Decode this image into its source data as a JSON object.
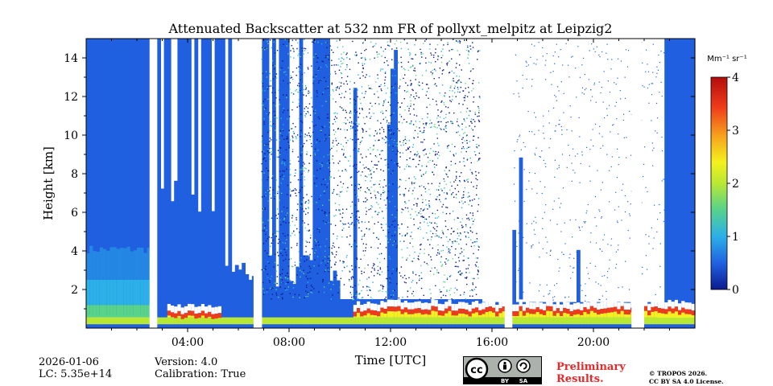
{
  "chart_data": {
    "type": "heatmap",
    "title": "Attenuated Backscatter at 532 nm FR of pollyxt_melpitz at Leipzig2",
    "xlabel": "Time [UTC]",
    "ylabel": "Height [km]",
    "x_unit": "hours UTC",
    "xlim": [
      0,
      24
    ],
    "ylim": [
      0,
      15
    ],
    "x_ticks": [
      4,
      8,
      12,
      16,
      20
    ],
    "x_tick_labels": [
      "04:00",
      "08:00",
      "12:00",
      "16:00",
      "20:00"
    ],
    "y_ticks": [
      2,
      4,
      6,
      8,
      10,
      12,
      14
    ],
    "y_tick_labels": [
      "2",
      "4",
      "6",
      "8",
      "10",
      "12",
      "14"
    ],
    "colorbar": {
      "unit_label": "Mm⁻¹ sr⁻¹",
      "range": [
        0,
        4
      ],
      "ticks": [
        0,
        1,
        2,
        3,
        4
      ],
      "tick_labels": [
        "0",
        "1",
        "2",
        "3",
        "4"
      ],
      "colormap": [
        "#0b1a8c",
        "#1f5fe0",
        "#2bb0e8",
        "#5ad38a",
        "#b8e832",
        "#f4f11e",
        "#f7a51c",
        "#ef3b1a",
        "#b30c0c"
      ]
    },
    "data_gaps_hours": [
      [
        2.5,
        2.8
      ],
      [
        6.6,
        6.9
      ],
      [
        16.5,
        16.8
      ],
      [
        21.5,
        21.9
      ]
    ],
    "boundary_layer_top_km": 1.5,
    "low_clouds": [
      {
        "start_hour": 3.2,
        "end_hour": 5.3,
        "base_km": 0.8,
        "intensity": 3.8
      },
      {
        "start_hour": 10.5,
        "end_hour": 24,
        "base_km": 1.0,
        "intensity": 3.5
      }
    ],
    "aerosol_layer": {
      "start_hour": 0,
      "end_hour": 2.5,
      "top_km": 4.3
    }
  },
  "footer": {
    "date": "2026-01-06",
    "lc": "LC: 5.35e+14",
    "version": "Version: 4.0",
    "calibration": "Calibration: True",
    "preliminary_line1": "Preliminary",
    "preliminary_line2": "Results.",
    "copyright_line1": "© TROPOS 2026.",
    "copyright_line2": "CC BY SA 4.0 License.",
    "license_badge_cc": "cc",
    "license_badge_by": "BY",
    "license_badge_sa": "SA"
  }
}
